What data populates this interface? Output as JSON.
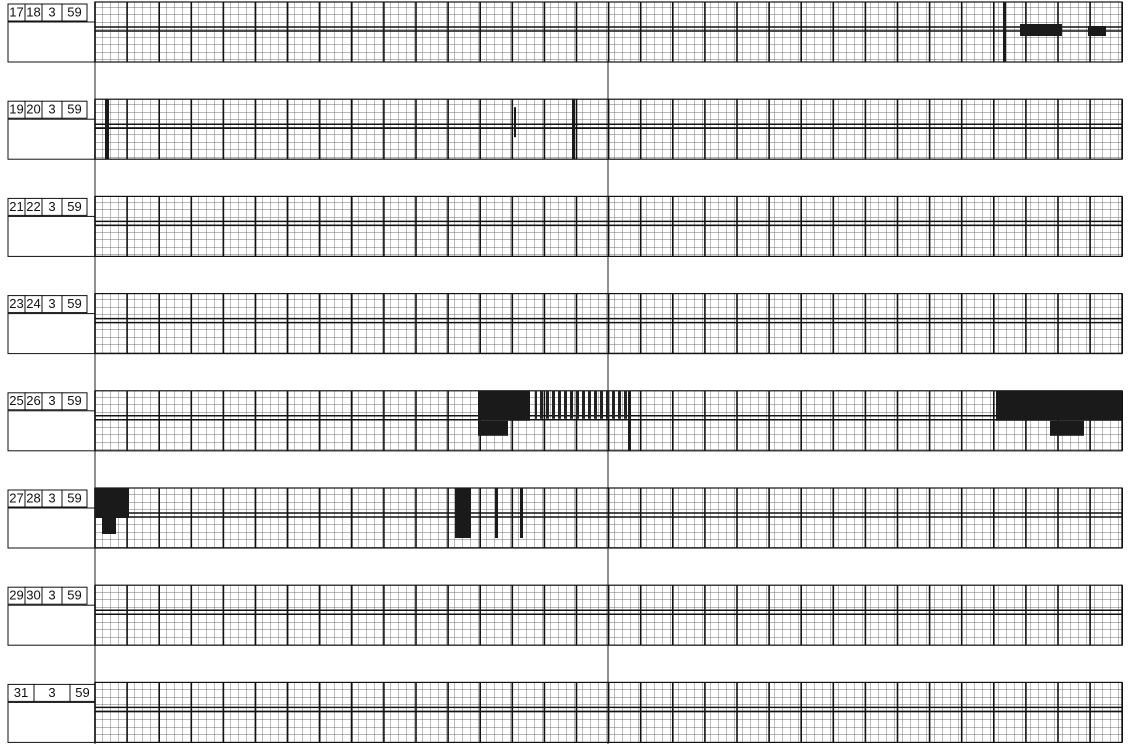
{
  "rows": [
    {
      "labels": [
        "17",
        "18",
        "3",
        "59"
      ]
    },
    {
      "labels": [
        "19",
        "20",
        "3",
        "59"
      ]
    },
    {
      "labels": [
        "21",
        "22",
        "3",
        "59"
      ]
    },
    {
      "labels": [
        "23",
        "24",
        "3",
        "59"
      ]
    },
    {
      "labels": [
        "25",
        "26",
        "3",
        "59"
      ]
    },
    {
      "labels": [
        "27",
        "28",
        "3",
        "59"
      ]
    },
    {
      "labels": [
        "29",
        "30",
        "3",
        "59"
      ]
    },
    {
      "labels": [
        "31",
        "3",
        "59"
      ]
    }
  ]
}
